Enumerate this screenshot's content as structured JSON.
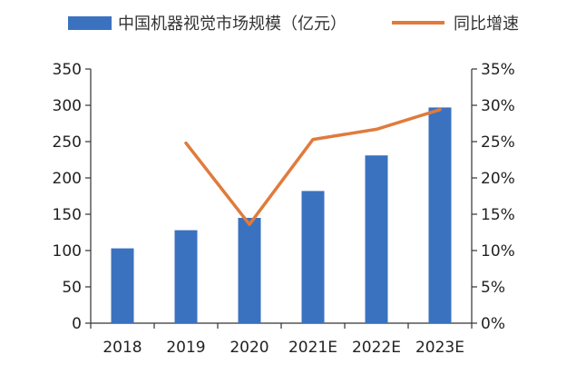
{
  "chart_data": {
    "type": "bar",
    "categories": [
      "2018",
      "2019",
      "2020",
      "2021E",
      "2022E",
      "2023E"
    ],
    "series": [
      {
        "name": "中国机器视觉市场规模（亿元）",
        "type": "bar",
        "axis": "left",
        "color": "#3a72c0",
        "values": [
          103,
          128,
          145,
          182,
          231,
          297
        ]
      },
      {
        "name": "同比增速",
        "type": "line",
        "axis": "right",
        "color": "#e07b3c",
        "values": [
          null,
          24.8,
          13.6,
          25.3,
          26.7,
          29.4
        ]
      }
    ],
    "ylim_left": [
      0,
      350
    ],
    "ylim_right": [
      0,
      35
    ],
    "left_ticks": [
      "0",
      "50",
      "100",
      "150",
      "200",
      "250",
      "300",
      "350"
    ],
    "right_ticks": [
      "0%",
      "5%",
      "10%",
      "15%",
      "20%",
      "25%",
      "30%",
      "35%"
    ],
    "legend_position": "top",
    "grid": false
  }
}
